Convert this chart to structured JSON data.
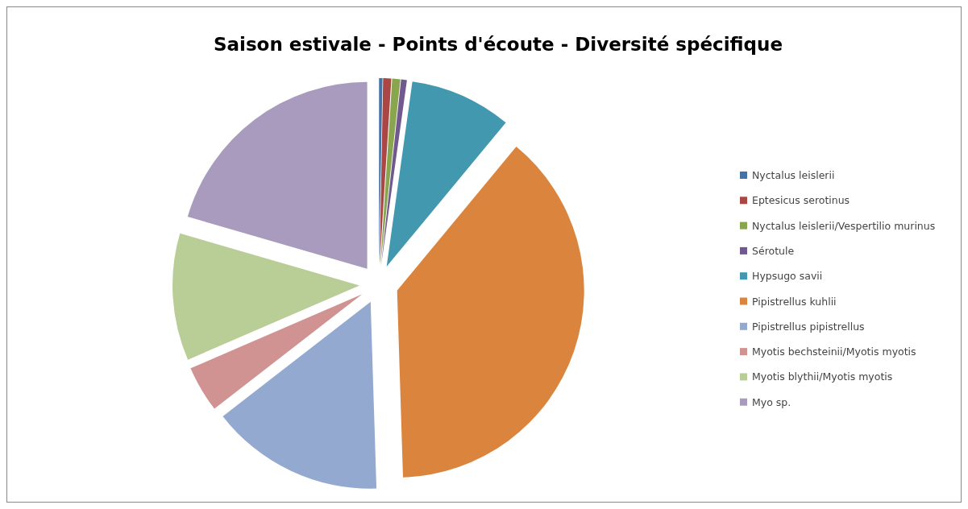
{
  "chart_data": {
    "type": "pie",
    "title": "Saison estivale - Points d'écoute - Diversité spécifique",
    "categories": [
      "Nyctalus leislerii",
      "Eptesicus serotinus",
      "Nyctalus leislerii/Vespertilio murinus",
      "Sérotule",
      "Hypsugo savii",
      "Pipistrellus kuhlii",
      "Pipistrellus pipistrellus",
      "Myotis bechsteinii/Myotis myotis",
      "Myotis blythii/Myotis myotis",
      "Myo sp."
    ],
    "values": [
      0.3,
      0.7,
      0.7,
      0.5,
      8.8,
      38.5,
      15,
      4,
      11,
      20.5
    ],
    "colors": [
      "#4572a7",
      "#aa4643",
      "#89a54e",
      "#71588f",
      "#4198af",
      "#db843d",
      "#93a9cf",
      "#d19392",
      "#b9cd96",
      "#a99bbd"
    ],
    "legend": "right"
  }
}
